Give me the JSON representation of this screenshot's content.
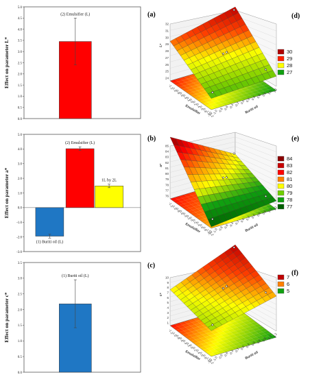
{
  "chart_data": [
    {
      "type": "bar",
      "panel": "(a)",
      "ylabel": "Effect on parameter L*",
      "ylim": [
        0,
        5
      ],
      "yticks": [
        "0.0",
        "0.5",
        "1.0",
        "1.5",
        "2.0",
        "2.5",
        "3.0",
        "3.5",
        "4.0",
        "4.5",
        "5.0"
      ],
      "bars": [
        {
          "label": "(2) Emulsifier  (L)",
          "value": 3.45,
          "err_low": 2.4,
          "err_high": 4.5,
          "color": "#ff0000"
        }
      ]
    },
    {
      "type": "bar",
      "panel": "(b)",
      "ylabel": "Effect on parameter a*",
      "ylim": [
        -3,
        5
      ],
      "yticks": [
        "-3.0",
        "-2.0",
        "-1.0",
        "0.0",
        "1.0",
        "2.0",
        "3.0",
        "4.0",
        "5.0"
      ],
      "bars": [
        {
          "label": "(1) Buriti  oil (L)",
          "value": -1.95,
          "err_low": -2.08,
          "err_high": -1.82,
          "color": "#1f77c4"
        },
        {
          "label": "(2) Emulsifier  (L)",
          "value": 4.02,
          "err_low": 3.9,
          "err_high": 4.15,
          "color": "#ff0000"
        },
        {
          "label": "1L by 2L",
          "value": 1.48,
          "err_low": 1.36,
          "err_high": 1.6,
          "color": "#ffff00"
        }
      ]
    },
    {
      "type": "bar",
      "panel": "(c)",
      "ylabel": "Effect on parameter c*",
      "ylim": [
        0,
        3.5
      ],
      "yticks": [
        "0.0",
        "0.5",
        "1.0",
        "1.5",
        "2.0",
        "2.5",
        "3.0",
        "3.5"
      ],
      "bars": [
        {
          "label": "(1) Buriti  oil  (L)",
          "value": 2.18,
          "err_low": 1.42,
          "err_high": 2.95,
          "color": "#1f77c4"
        }
      ]
    },
    {
      "type": "surface",
      "panel": "(d)",
      "zlabel": "L*",
      "zticks": [
        "24",
        "25",
        "26",
        "27",
        "28",
        "29",
        "30",
        "31",
        "32"
      ],
      "xlabel": "Buriti oil",
      "ylabel": "Emulsifier",
      "legend": [
        {
          "label": "30",
          "color": "#b00000"
        },
        {
          "label": "29",
          "color": "#ff2000"
        },
        {
          "label": "28",
          "color": "#ffff00"
        },
        {
          "label": "27",
          "color": "#10a010"
        }
      ]
    },
    {
      "type": "surface",
      "panel": "(e)",
      "zlabel": "a*",
      "zticks": [
        "76",
        "77",
        "78",
        "79",
        "80",
        "81",
        "82",
        "83",
        "84",
        "85"
      ],
      "xlabel": "Buriti oil",
      "ylabel": "Emulsifier",
      "legend": [
        {
          "label": "84",
          "color": "#8a0000"
        },
        {
          "label": "83",
          "color": "#c80000"
        },
        {
          "label": "82",
          "color": "#ff0000"
        },
        {
          "label": "81",
          "color": "#ff8000"
        },
        {
          "label": "80",
          "color": "#ffff00"
        },
        {
          "label": "79",
          "color": "#70d000"
        },
        {
          "label": "78",
          "color": "#10a010"
        },
        {
          "label": "77",
          "color": "#006000"
        }
      ]
    },
    {
      "type": "surface",
      "panel": "(f)",
      "zlabel": "c*",
      "zticks": [
        "1",
        "2",
        "3",
        "4",
        "5",
        "6",
        "7",
        "8",
        "9",
        "10"
      ],
      "xlabel": "Buriti oil",
      "ylabel": "Emulsifier",
      "legend": [
        {
          "label": "7",
          "color": "#c00000"
        },
        {
          "label": "6",
          "color": "#ff8000"
        },
        {
          "label": "5",
          "color": "#10a010"
        }
      ]
    }
  ]
}
